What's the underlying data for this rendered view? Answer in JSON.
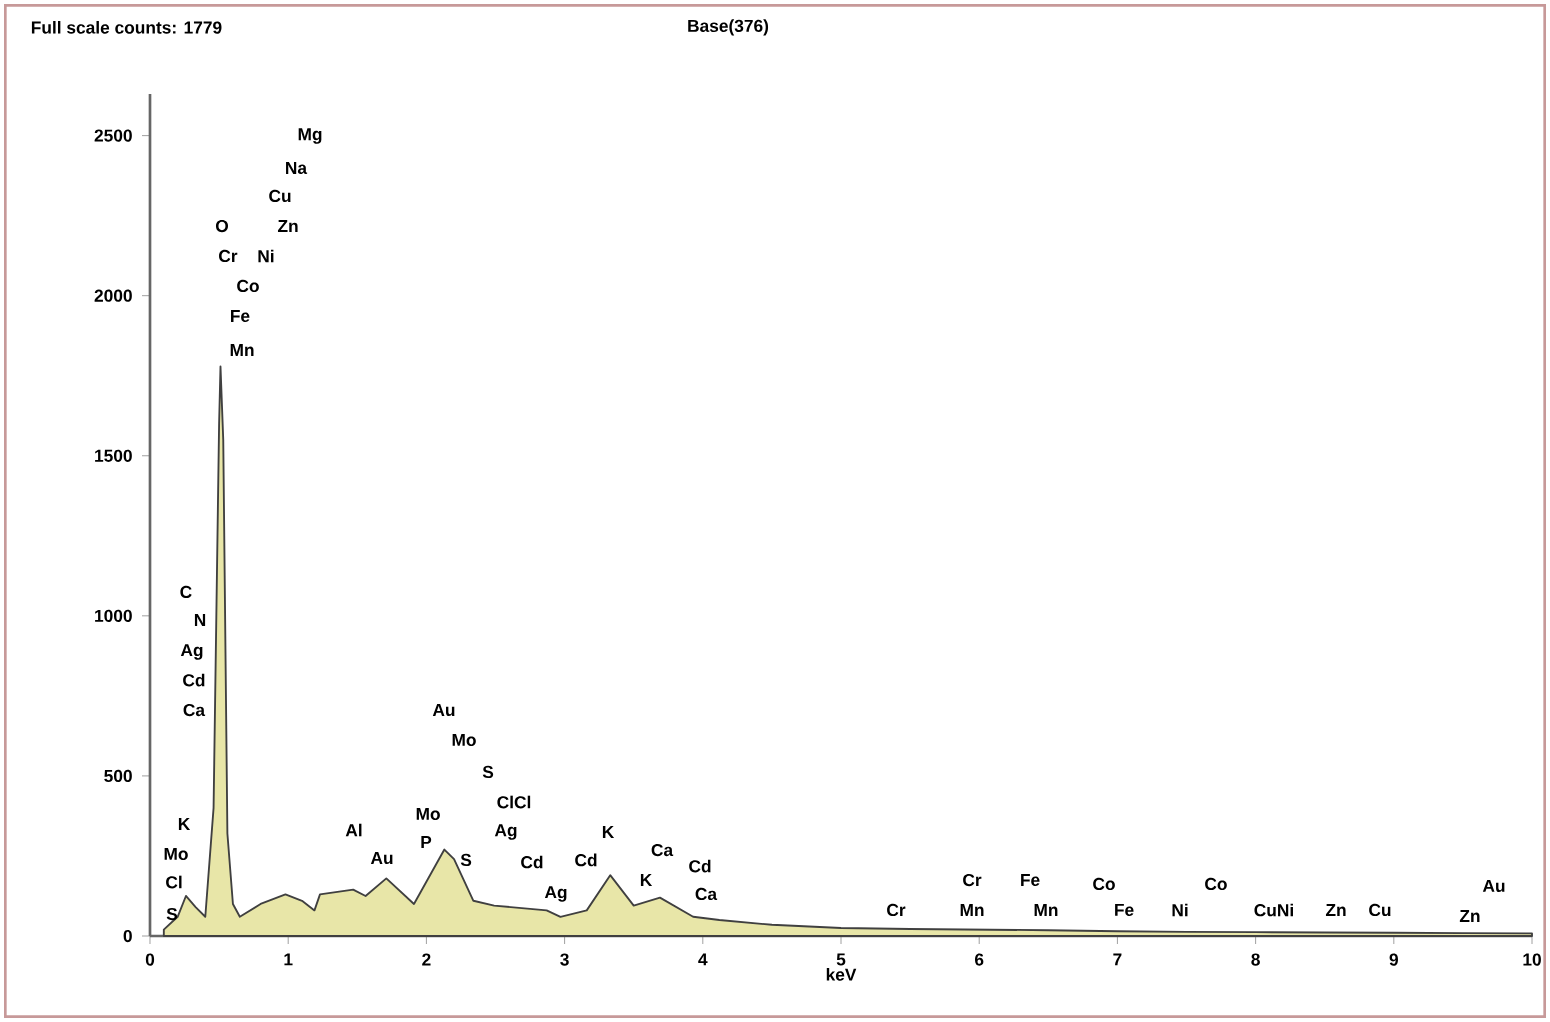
{
  "chart_data": {
    "type": "area",
    "title": "Full scale counts: 1779",
    "subtitle": "Base(376)",
    "xlabel": "keV",
    "color": "#e8e6a8",
    "grid": false,
    "x": [
      0.1,
      0.2,
      0.26,
      0.33,
      0.4,
      0.46,
      0.5,
      0.51,
      0.53,
      0.56,
      0.6,
      0.65,
      0.8,
      0.98,
      1.1,
      1.19,
      1.23,
      1.47,
      1.56,
      1.71,
      1.91,
      2.13,
      2.2,
      2.34,
      2.49,
      2.87,
      2.97,
      3.16,
      3.33,
      3.5,
      3.69,
      3.93,
      4.12,
      4.5,
      5,
      5.5,
      6,
      6.5,
      7,
      7.5,
      8,
      8.5,
      9,
      9.5,
      10
    ],
    "values": [
      20,
      60,
      125,
      90,
      60,
      400,
      1600,
      1779,
      1550,
      320,
      100,
      60,
      100,
      130,
      110,
      80,
      130,
      145,
      125,
      180,
      100,
      270,
      240,
      110,
      95,
      80,
      60,
      80,
      190,
      95,
      120,
      60,
      50,
      35,
      25,
      22,
      20,
      18,
      15,
      13,
      12,
      11,
      10,
      9,
      8
    ],
    "xlim": [
      0,
      10
    ],
    "ylim": [
      0,
      2630
    ],
    "xticks": [
      0,
      1,
      2,
      3,
      4,
      5,
      6,
      7,
      8,
      9,
      10
    ],
    "yticks": [
      0,
      500,
      1000,
      1500,
      2000,
      2500
    ],
    "annotations": [
      "Mg",
      "Na",
      "Cu",
      "O",
      "Zn",
      "Cr",
      "Ni",
      "Co",
      "Fe",
      "Mn",
      "C",
      "N",
      "Ag",
      "Cd",
      "Ca",
      "K",
      "Mo",
      "Cl",
      "S",
      "Au",
      "Mo",
      "S",
      "ClCl",
      "Ag",
      "Cd",
      "Ag",
      "Cd",
      "K",
      "K",
      "Ca",
      "Cd",
      "Ca",
      "Al",
      "Au",
      "Mo",
      "P",
      "S",
      "Cr",
      "Cr",
      "Mn",
      "Fe",
      "Mn",
      "Co",
      "Fe",
      "Ni",
      "Co",
      "CuNi",
      "Zn",
      "Cu",
      "Au",
      "Zn"
    ]
  }
}
